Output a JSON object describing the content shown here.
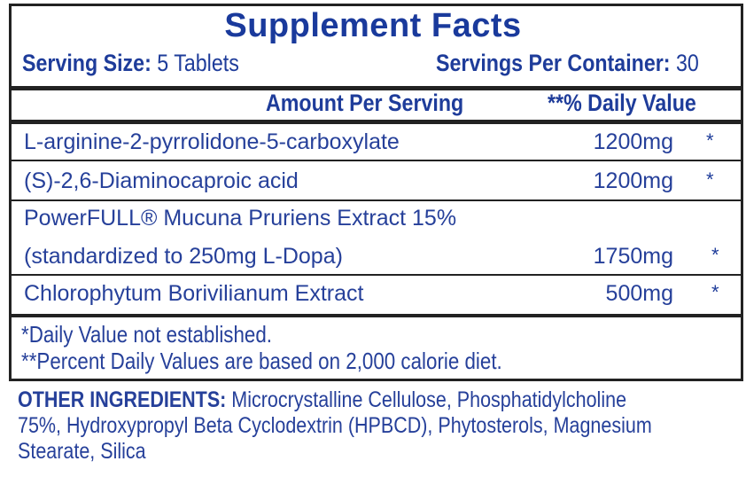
{
  "title": "Supplement Facts",
  "serving_size": {
    "label": "Serving Size:",
    "value": "5 Tablets"
  },
  "servings_per_container": {
    "label": "Servings Per Container:",
    "value": "30"
  },
  "columns": {
    "amount": "Amount Per Serving",
    "daily_value": "**% Daily Value"
  },
  "rows": [
    {
      "name": "L-arginine-2-pyrrolidone-5-carboxylate",
      "amount": "1200mg",
      "dv": "*"
    },
    {
      "name": "(S)-2,6-Diaminocaproic acid",
      "amount": "1200mg",
      "dv": "*"
    },
    {
      "name": "PowerFULL® Mucuna Pruriens Extract 15%",
      "name2": "(standardized to 250mg L-Dopa)",
      "amount": "1750mg",
      "dv": "*"
    },
    {
      "name": "Chlorophytum Borivilianum Extract",
      "amount": "500mg",
      "dv": "*"
    }
  ],
  "footnotes": [
    "*Daily Value not established.",
    "**Percent Daily Values are based on 2,000 calorie diet."
  ],
  "other_ingredients": {
    "label": "OTHER INGREDIENTS:",
    "lines": [
      " Microcrystalline Cellulose, Phosphatidylcholine",
      "75%, Hydroxypropyl Beta Cyclodextrin (HPBCD), Phytosterols, Magnesium",
      "Stearate, Silica"
    ]
  },
  "colors": {
    "text": "#1e3c9a",
    "border": "#222222"
  }
}
